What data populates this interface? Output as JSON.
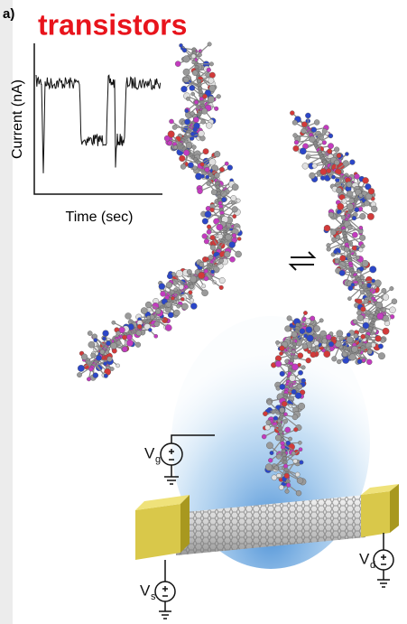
{
  "panel_label": "a)",
  "title": "transistors",
  "inset": {
    "y_label": "Current (nA)",
    "x_label": "Time (sec)"
  },
  "voltages": [
    {
      "symbol": "V",
      "subscript": "g"
    },
    {
      "symbol": "V",
      "subscript": "s"
    },
    {
      "symbol": "V",
      "subscript": "d"
    }
  ]
}
